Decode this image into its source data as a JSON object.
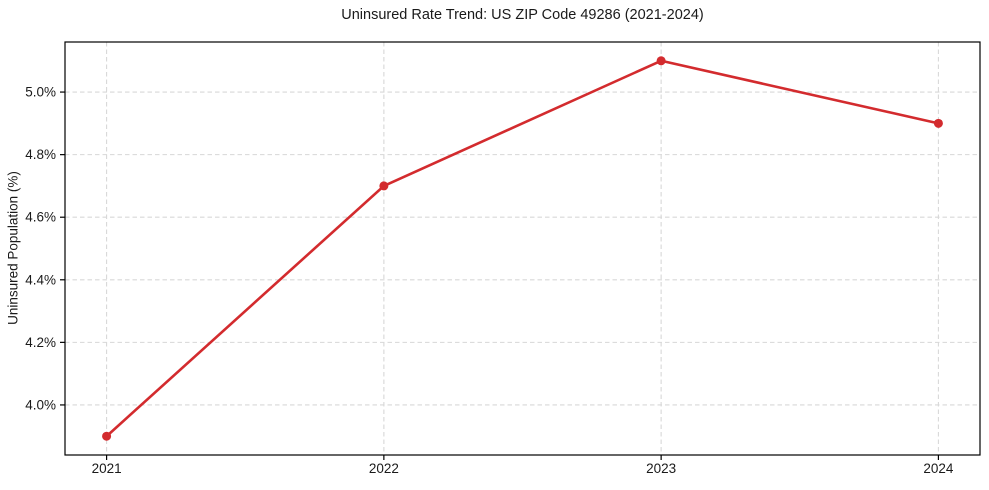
{
  "chart_data": {
    "type": "line",
    "title": "Uninsured Rate Trend: US ZIP Code 49286 (2021-2024)",
    "xlabel": "",
    "ylabel": "Uninsured Population (%)",
    "x": [
      2021,
      2022,
      2023,
      2024
    ],
    "series": [
      {
        "name": "Uninsured Population (%)",
        "values": [
          3.9,
          4.7,
          5.1,
          4.9
        ]
      }
    ],
    "xtick_labels": [
      "2021",
      "2022",
      "2023",
      "2024"
    ],
    "ytick_values": [
      4.0,
      4.2,
      4.4,
      4.6,
      4.8,
      5.0
    ],
    "ytick_labels": [
      "4.0%",
      "4.2%",
      "4.4%",
      "4.6%",
      "4.8%",
      "5.0%"
    ],
    "xlim": [
      2020.85,
      2024.15
    ],
    "ylim": [
      3.84,
      5.16
    ],
    "grid": true,
    "legend_position": "none",
    "line_color": "#d32b2e",
    "marker": "circle",
    "marker_diameter": 9,
    "line_width": 2.6,
    "grid_color": "#d8d8d8",
    "axis_color": "#000000",
    "background_color": "#ffffff"
  }
}
